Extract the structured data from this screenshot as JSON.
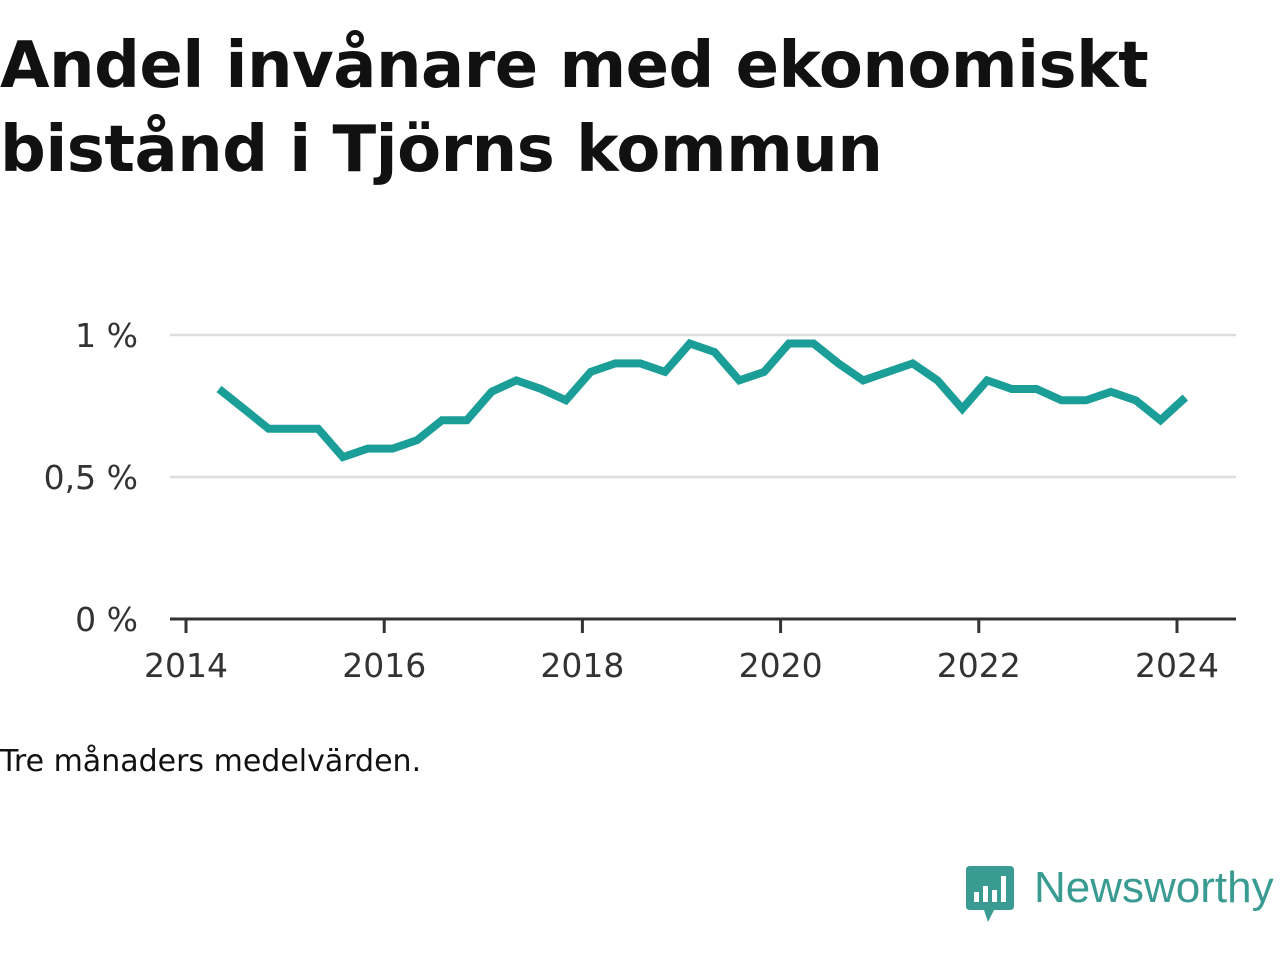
{
  "title": "Andel invånare med ekonomiskt bistånd i Tjörns kommun",
  "caption": "Tre månaders medelvärden.",
  "brand": {
    "name": "Newsworthy",
    "color": "#3a9b92"
  },
  "colors": {
    "line": "#1a9e97",
    "grid": "#dddddd",
    "axis": "#333333"
  },
  "chart_data": {
    "type": "line",
    "title": "Andel invånare med ekonomiskt bistånd i Tjörns kommun",
    "xlabel": "",
    "ylabel": "",
    "ylim": [
      0,
      1.0
    ],
    "xlim": [
      2013.98,
      2024.58
    ],
    "y_ticks": [
      0,
      0.5,
      1
    ],
    "y_tick_labels": [
      "0 %",
      "0,5 %",
      "1 %"
    ],
    "x_ticks": [
      2014,
      2016,
      2018,
      2020,
      2022,
      2024
    ],
    "x_tick_labels": [
      "2014",
      "2016",
      "2018",
      "2020",
      "2022",
      "2024"
    ],
    "grid": true,
    "series": [
      {
        "x": [
          "2014-05",
          "2014-08",
          "2014-11",
          "2015-02",
          "2015-05",
          "2015-08",
          "2015-11",
          "2016-02",
          "2016-05",
          "2016-08",
          "2016-11",
          "2017-02",
          "2017-05",
          "2017-08",
          "2017-11",
          "2018-02",
          "2018-05",
          "2018-08",
          "2018-11",
          "2019-02",
          "2019-05",
          "2019-08",
          "2019-11",
          "2020-02",
          "2020-05",
          "2020-08",
          "2020-11",
          "2021-02",
          "2021-05",
          "2021-08",
          "2021-11",
          "2022-02",
          "2022-05",
          "2022-08",
          "2022-11",
          "2023-02",
          "2023-05",
          "2023-08",
          "2023-11",
          "2024-02"
        ],
        "values": [
          0.81,
          0.74,
          0.67,
          0.67,
          0.67,
          0.57,
          0.6,
          0.6,
          0.63,
          0.7,
          0.7,
          0.8,
          0.84,
          0.81,
          0.77,
          0.87,
          0.9,
          0.9,
          0.87,
          0.97,
          0.94,
          0.84,
          0.87,
          0.97,
          0.97,
          0.9,
          0.84,
          0.87,
          0.9,
          0.84,
          0.74,
          0.84,
          0.81,
          0.81,
          0.77,
          0.77,
          0.8,
          0.77,
          0.7,
          0.78
        ]
      }
    ]
  }
}
